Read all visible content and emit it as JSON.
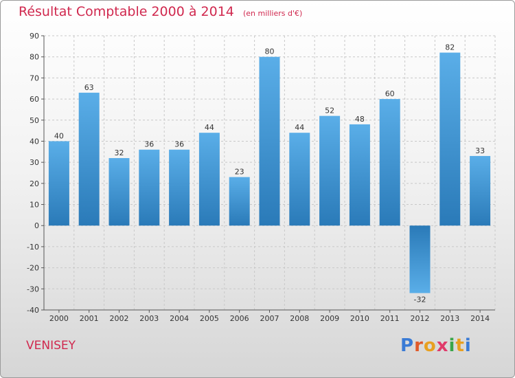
{
  "header": {
    "title": "Résultat Comptable 2000 à 2014",
    "subtitle": "(en milliers d'€)"
  },
  "footer": {
    "place": "VENISEY",
    "logo": "Proxiti"
  },
  "colors": {
    "title": "#d0284e",
    "bar_light": "#5aaee8",
    "bar_dark": "#2a7ab8",
    "grid": "#c8c8c8",
    "axis_text": "#333333",
    "logo_letters": [
      "#3a7bd5",
      "#e05a2a",
      "#e8a020",
      "#e03a6a",
      "#3aa64a",
      "#e8a020",
      "#3a7bd5"
    ]
  },
  "chart_data": {
    "type": "bar",
    "title": "Résultat Comptable 2000 à 2014",
    "subtitle": "(en milliers d'€)",
    "categories": [
      "2000",
      "2001",
      "2002",
      "2003",
      "2004",
      "2005",
      "2006",
      "2007",
      "2008",
      "2009",
      "2010",
      "2011",
      "2012",
      "2013",
      "2014"
    ],
    "values": [
      40,
      63,
      32,
      36,
      36,
      44,
      23,
      80,
      44,
      52,
      48,
      60,
      -32,
      82,
      33
    ],
    "ylim": [
      -40,
      90
    ],
    "yticks": [
      90,
      80,
      70,
      60,
      50,
      40,
      30,
      20,
      10,
      0,
      -10,
      -20,
      -30,
      -40
    ],
    "grid": true,
    "legend": "none"
  }
}
